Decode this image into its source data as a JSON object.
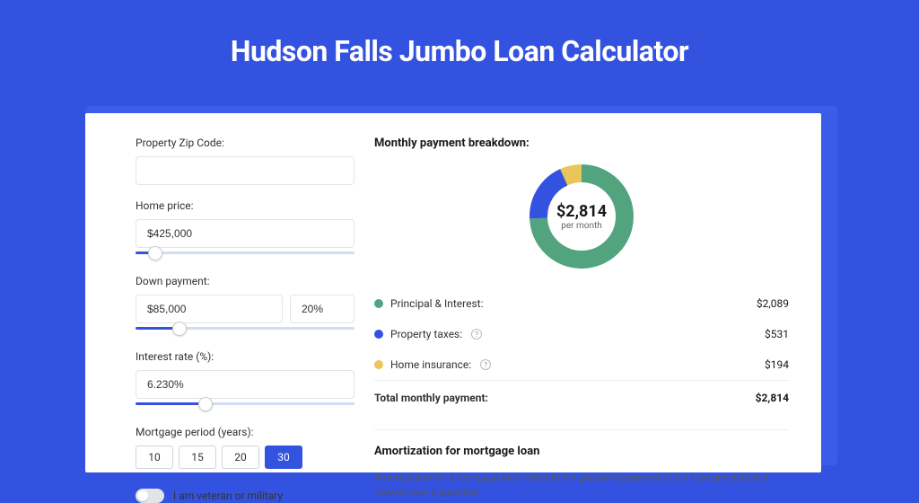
{
  "header": {
    "title": "Hudson Falls Jumbo Loan Calculator"
  },
  "form": {
    "zip": {
      "label": "Property Zip Code:",
      "value": ""
    },
    "home_price": {
      "label": "Home price:",
      "value": "$425,000",
      "slider_pct": 9
    },
    "down_payment": {
      "label": "Down payment:",
      "amount": "$85,000",
      "percent": "20%",
      "slider_pct": 20
    },
    "interest": {
      "label": "Interest rate (%):",
      "value": "6.230%",
      "slider_pct": 32
    },
    "period": {
      "label": "Mortgage period (years):",
      "options": [
        "10",
        "15",
        "20",
        "30"
      ],
      "active_index": 3
    },
    "veteran": {
      "label": "I am veteran or military",
      "on": false
    }
  },
  "breakdown": {
    "title": "Monthly payment breakdown:",
    "donut": {
      "amount": "$2,814",
      "sub": "per month",
      "slices": [
        {
          "color": "#52a47f",
          "pct": 74.2
        },
        {
          "color": "#3452e0",
          "pct": 18.9
        },
        {
          "color": "#e9c55a",
          "pct": 6.9
        }
      ],
      "stroke_width": 20,
      "size": 120
    },
    "items": [
      {
        "color": "#52a47f",
        "label": "Principal & Interest:",
        "info": false,
        "value": "$2,089"
      },
      {
        "color": "#3452e0",
        "label": "Property taxes:",
        "info": true,
        "value": "$531"
      },
      {
        "color": "#e9c55a",
        "label": "Home insurance:",
        "info": true,
        "value": "$194"
      }
    ],
    "total": {
      "label": "Total monthly payment:",
      "value": "$2,814"
    }
  },
  "amort": {
    "title": "Amortization for mortgage loan",
    "text": "Amortization for a mortgage loan refers to the gradual repayment of the loan principal and interest over a specified"
  },
  "colors": {
    "page_bg": "#3452e0",
    "card_bg": "#ffffff",
    "shadow_bg": "#3a5ce8",
    "border": "#e2e4e8",
    "slider_track": "#d3dbf5",
    "slider_fill": "#3452e0"
  }
}
